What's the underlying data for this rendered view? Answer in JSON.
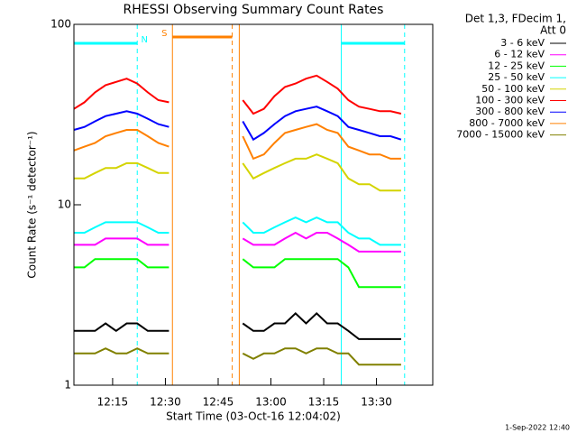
{
  "chart_data": {
    "type": "line",
    "title": "RHESSI Observing Summary Count Rates",
    "xlabel": "Start Time (03-Oct-16 12:04:02)",
    "ylabel": "Count Rate (s⁻¹ detector⁻¹)",
    "legend_header": [
      "Det 1,3, FDecim 1,",
      "Att 0"
    ],
    "footer": "1-Sep-2022 12:40",
    "yscale": "log",
    "ylim": [
      1,
      100
    ],
    "yticks": [
      1,
      10,
      100
    ],
    "xlim": [
      "12:04",
      "13:46"
    ],
    "xticks": [
      "12:15",
      "12:30",
      "12:45",
      "13:00",
      "13:15",
      "13:30"
    ],
    "x": [
      "12:04",
      "12:07",
      "12:10",
      "12:13",
      "12:16",
      "12:19",
      "12:22",
      "12:25",
      "12:28",
      "12:31",
      "12:40",
      "12:52",
      "12:55",
      "12:58",
      "13:01",
      "13:04",
      "13:07",
      "13:10",
      "13:13",
      "13:16",
      "13:19",
      "13:22",
      "13:25",
      "13:28",
      "13:31",
      "13:34",
      "13:37"
    ],
    "series": [
      {
        "name": "3 - 6 keV",
        "color": "#000000",
        "values": [
          2,
          2,
          2,
          2.2,
          2,
          2.2,
          2.2,
          2,
          2,
          2,
          null,
          2.2,
          2,
          2,
          2.2,
          2.2,
          2.5,
          2.2,
          2.5,
          2.2,
          2.2,
          2,
          1.8,
          1.8,
          1.8,
          1.8,
          1.8
        ]
      },
      {
        "name": "6 - 12 keV",
        "color": "#ff00ff",
        "values": [
          6,
          6,
          6,
          6.5,
          6.5,
          6.5,
          6.5,
          6,
          6,
          6,
          null,
          6.5,
          6,
          6,
          6,
          6.5,
          7,
          6.5,
          7,
          7,
          6.5,
          6,
          5.5,
          5.5,
          5.5,
          5.5,
          5.5
        ]
      },
      {
        "name": "12 - 25 keV",
        "color": "#00ff00",
        "values": [
          4.5,
          4.5,
          5,
          5,
          5,
          5,
          5,
          4.5,
          4.5,
          4.5,
          null,
          5,
          4.5,
          4.5,
          4.5,
          5,
          5,
          5,
          5,
          5,
          5,
          4.5,
          3.5,
          3.5,
          3.5,
          3.5,
          3.5
        ]
      },
      {
        "name": "25 - 50 keV",
        "color": "#00ffff",
        "values": [
          7,
          7,
          7.5,
          8,
          8,
          8,
          8,
          7.5,
          7,
          7,
          null,
          8,
          7,
          7,
          7.5,
          8,
          8.5,
          8,
          8.5,
          8,
          8,
          7,
          6.5,
          6.5,
          6,
          6,
          6
        ]
      },
      {
        "name": "50 - 100 keV",
        "color": "#d4d400",
        "values": [
          14,
          14,
          15,
          16,
          16,
          17,
          17,
          16,
          15,
          15,
          null,
          17,
          14,
          15,
          16,
          17,
          18,
          18,
          19,
          18,
          17,
          14,
          13,
          13,
          12,
          12,
          12
        ]
      },
      {
        "name": "100 - 300 keV",
        "color": "#ff0000",
        "values": [
          34,
          37,
          42,
          46,
          48,
          50,
          47,
          42,
          38,
          37,
          null,
          38,
          32,
          34,
          40,
          45,
          47,
          50,
          52,
          48,
          44,
          38,
          35,
          34,
          33,
          33,
          32
        ]
      },
      {
        "name": "300 - 800 keV",
        "color": "#0000ff",
        "values": [
          26,
          27,
          29,
          31,
          32,
          33,
          32,
          30,
          28,
          27,
          null,
          29,
          23,
          25,
          28,
          31,
          33,
          34,
          35,
          33,
          31,
          27,
          26,
          25,
          24,
          24,
          23
        ]
      },
      {
        "name": "800 - 7000 keV",
        "color": "#ff8000",
        "values": [
          20,
          21,
          22,
          24,
          25,
          26,
          26,
          24,
          22,
          21,
          null,
          24,
          18,
          19,
          22,
          25,
          26,
          27,
          28,
          26,
          25,
          21,
          20,
          19,
          19,
          18,
          18
        ]
      },
      {
        "name": "7000 - 15000 keV",
        "color": "#808000",
        "values": [
          1.5,
          1.5,
          1.5,
          1.6,
          1.5,
          1.5,
          1.6,
          1.5,
          1.5,
          1.5,
          null,
          1.5,
          1.4,
          1.5,
          1.5,
          1.6,
          1.6,
          1.5,
          1.6,
          1.6,
          1.5,
          1.5,
          1.3,
          1.3,
          1.3,
          1.3,
          1.3
        ]
      }
    ],
    "periods": [
      {
        "label": "N",
        "start": "12:04",
        "end": "12:22",
        "color": "#00ffff"
      },
      {
        "label": "S",
        "start": "12:32",
        "end": "12:49",
        "color": "#ff8000"
      },
      {
        "start": "13:20",
        "end": "13:38",
        "color": "#00ffff"
      }
    ],
    "markers": [
      {
        "time": "12:04",
        "color": "#00ffff",
        "style": "solid"
      },
      {
        "time": "12:22",
        "color": "#00ffff",
        "style": "dashed"
      },
      {
        "time": "12:32",
        "color": "#ff8000",
        "style": "solid"
      },
      {
        "time": "12:49",
        "color": "#ff8000",
        "style": "dashed"
      },
      {
        "time": "12:51",
        "color": "#ff8000",
        "style": "solid"
      },
      {
        "time": "13:20",
        "color": "#00ffff",
        "style": "solid"
      },
      {
        "time": "13:38",
        "color": "#00ffff",
        "style": "dashed"
      }
    ]
  }
}
